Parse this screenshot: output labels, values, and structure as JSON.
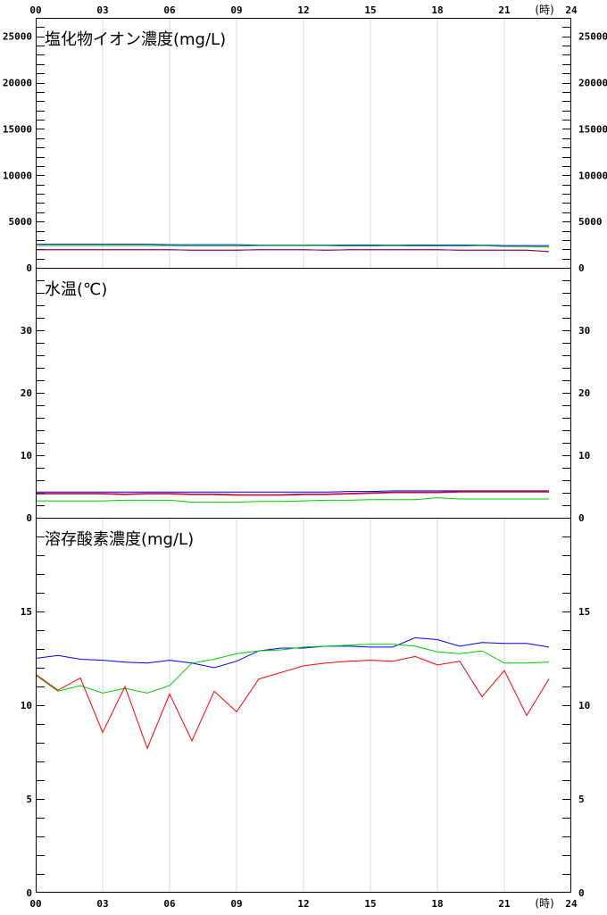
{
  "x_axis": {
    "tick_labels": [
      "00",
      "03",
      "06",
      "09",
      "12",
      "15",
      "18",
      "21",
      "24"
    ],
    "unit": "(時)",
    "range": [
      0,
      24
    ]
  },
  "chart_data": [
    {
      "type": "line",
      "title": "塩化物イオン濃度(mg/L)",
      "ylim": [
        0,
        27000
      ],
      "y_tick_labels": [
        "0",
        "5000",
        "10000",
        "15000",
        "20000",
        "25000"
      ],
      "y_tick_values": [
        0,
        5000,
        10000,
        15000,
        20000,
        25000
      ],
      "grid": "vertical",
      "x": [
        0,
        1,
        2,
        3,
        4,
        5,
        6,
        7,
        8,
        9,
        10,
        11,
        12,
        13,
        14,
        15,
        16,
        17,
        18,
        19,
        20,
        21,
        22,
        23
      ],
      "series": [
        {
          "color": "#0000ff",
          "values": [
            2550,
            2550,
            2550,
            2550,
            2550,
            2550,
            2500,
            2500,
            2500,
            2500,
            2450,
            2450,
            2450,
            2450,
            2450,
            2450,
            2450,
            2450,
            2450,
            2450,
            2450,
            2400,
            2400,
            2400
          ]
        },
        {
          "color": "#00cc00",
          "values": [
            2400,
            2400,
            2400,
            2400,
            2400,
            2400,
            2400,
            2350,
            2350,
            2350,
            2400,
            2400,
            2400,
            2400,
            2350,
            2350,
            2400,
            2350,
            2350,
            2350,
            2400,
            2300,
            2300,
            2250
          ]
        },
        {
          "color": "#ff0000",
          "values": [
            1950,
            1950,
            1950,
            1950,
            1950,
            1950,
            1950,
            1900,
            1900,
            1900,
            1950,
            1950,
            1950,
            1900,
            1950,
            1950,
            1950,
            1950,
            1950,
            1900,
            1900,
            1900,
            1900,
            1750
          ]
        },
        {
          "color": "#800080",
          "values": [
            1950,
            1950,
            1950,
            1950,
            1950,
            1950,
            1950,
            1900,
            1900,
            1900,
            1950,
            1950,
            1950,
            1900,
            1950,
            1950,
            1950,
            1950,
            1950,
            1900,
            1900,
            1900,
            1900,
            1750
          ]
        }
      ]
    },
    {
      "type": "line",
      "title": "水温(℃)",
      "ylim": [
        0,
        40
      ],
      "y_tick_labels": [
        "0",
        "10",
        "20",
        "30"
      ],
      "y_tick_values": [
        0,
        10,
        20,
        30
      ],
      "grid": "none",
      "x": [
        0,
        1,
        2,
        3,
        4,
        5,
        6,
        7,
        8,
        9,
        10,
        11,
        12,
        13,
        14,
        15,
        16,
        17,
        18,
        19,
        20,
        21,
        22,
        23
      ],
      "series": [
        {
          "color": "#0000ff",
          "values": [
            4.1,
            4.1,
            4.1,
            4.1,
            4.1,
            4.1,
            4.1,
            4.1,
            4.1,
            4.1,
            4.1,
            4.1,
            4.1,
            4.1,
            4.2,
            4.2,
            4.3,
            4.3,
            4.3,
            4.3,
            4.3,
            4.3,
            4.3,
            4.3
          ]
        },
        {
          "color": "#800080",
          "values": [
            3.9,
            3.9,
            3.9,
            3.9,
            3.8,
            3.9,
            3.9,
            3.8,
            3.8,
            3.7,
            3.7,
            3.7,
            3.8,
            3.8,
            3.9,
            4.0,
            4.1,
            4.1,
            4.1,
            4.2,
            4.2,
            4.2,
            4.2,
            4.2
          ]
        },
        {
          "color": "#ff0000",
          "values": [
            3.8,
            3.8,
            3.8,
            3.8,
            3.7,
            3.8,
            3.8,
            3.7,
            3.7,
            3.6,
            3.6,
            3.6,
            3.7,
            3.7,
            3.8,
            3.9,
            4.0,
            4.0,
            4.0,
            4.1,
            4.1,
            4.1,
            4.1,
            4.1
          ]
        },
        {
          "color": "#00cc00",
          "values": [
            2.7,
            2.7,
            2.7,
            2.7,
            2.8,
            2.8,
            2.8,
            2.5,
            2.5,
            2.5,
            2.6,
            2.6,
            2.7,
            2.8,
            2.8,
            2.9,
            2.9,
            2.9,
            3.2,
            3.0,
            3.0,
            3.0,
            3.0,
            3.0
          ]
        }
      ]
    },
    {
      "type": "line",
      "title": "溶存酸素濃度(mg/L)",
      "ylim": [
        0,
        20
      ],
      "y_tick_labels": [
        "0",
        "5",
        "10",
        "15"
      ],
      "y_tick_values": [
        0,
        5,
        10,
        15
      ],
      "grid": "vertical",
      "x": [
        0,
        1,
        2,
        3,
        4,
        5,
        6,
        7,
        8,
        9,
        10,
        11,
        12,
        13,
        14,
        15,
        16,
        17,
        18,
        19,
        20,
        21,
        22,
        23
      ],
      "series": [
        {
          "color": "#0000ff",
          "values": [
            12.5,
            12.65,
            12.45,
            12.4,
            12.3,
            12.25,
            12.4,
            12.25,
            12.0,
            12.35,
            12.9,
            13.05,
            13.05,
            13.15,
            13.15,
            13.1,
            13.1,
            13.6,
            13.5,
            13.15,
            13.35,
            13.3,
            13.3,
            13.1
          ]
        },
        {
          "color": "#00cc00",
          "values": [
            11.6,
            10.75,
            11.05,
            10.65,
            10.9,
            10.65,
            11.05,
            12.25,
            12.45,
            12.75,
            12.9,
            12.95,
            13.1,
            13.15,
            13.2,
            13.25,
            13.25,
            13.15,
            12.85,
            12.75,
            12.9,
            12.25,
            12.25,
            12.3
          ]
        },
        {
          "color": "#ff0000",
          "values": [
            11.65,
            10.8,
            11.45,
            8.55,
            11.0,
            7.7,
            10.6,
            8.1,
            10.75,
            9.65,
            11.4,
            11.75,
            12.1,
            12.25,
            12.35,
            12.4,
            12.35,
            12.6,
            12.15,
            12.35,
            10.45,
            11.85,
            9.45,
            11.4
          ]
        }
      ]
    }
  ]
}
